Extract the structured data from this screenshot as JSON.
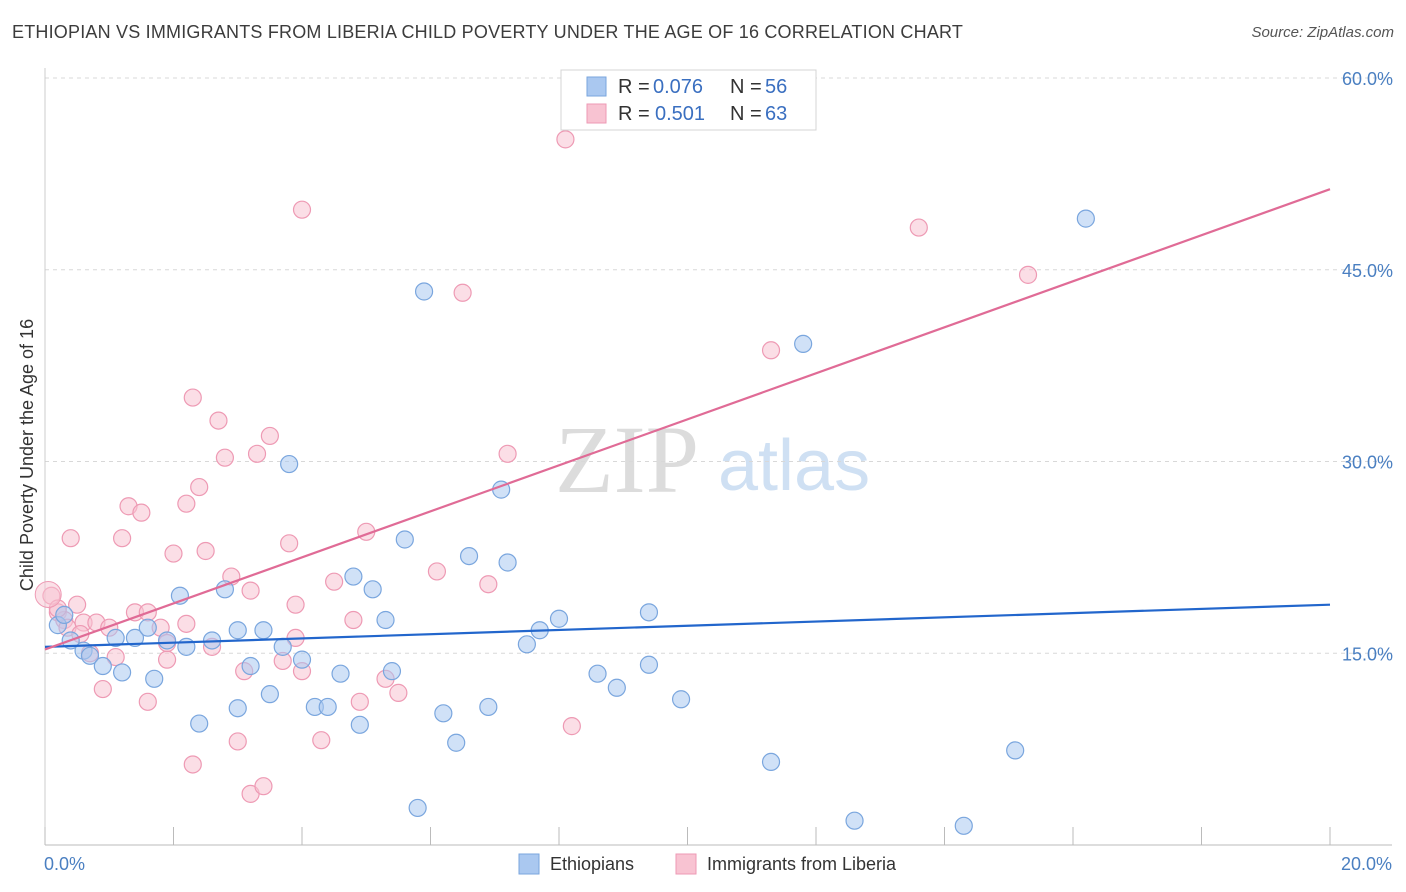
{
  "title": "ETHIOPIAN VS IMMIGRANTS FROM LIBERIA CHILD POVERTY UNDER THE AGE OF 16 CORRELATION CHART",
  "source": "Source: ZipAtlas.com",
  "watermark": {
    "zip": "ZIP",
    "atlas": "atlas"
  },
  "colors": {
    "blue_fill": "#aac8f0",
    "blue_stroke": "#7aa6de",
    "blue_line": "#2266cc",
    "pink_fill": "#f8c3d2",
    "pink_stroke": "#ee9ab4",
    "pink_line": "#e06b96",
    "tick_text": "#4a7fc1",
    "grid": "#d8d8d8"
  },
  "legend": {
    "rows": [
      {
        "r_label": "R =",
        "r_value": "0.076",
        "n_label": "N =",
        "n_value": "56"
      },
      {
        "r_label": "R =",
        "r_value": "0.501",
        "n_label": "N =",
        "n_value": "63"
      }
    ]
  },
  "chart_data": {
    "type": "scatter",
    "title": "ETHIOPIAN VS IMMIGRANTS FROM LIBERIA CHILD POVERTY UNDER THE AGE OF 16 CORRELATION CHART",
    "xlabel": "",
    "ylabel": "Child Poverty Under the Age of 16",
    "xlim": [
      0,
      20
    ],
    "ylim": [
      0,
      60
    ],
    "x_tick_labels": [
      "0.0%",
      "20.0%"
    ],
    "y_ticks": [
      15,
      30,
      45,
      60
    ],
    "y_tick_labels": [
      "15.0%",
      "30.0%",
      "45.0%",
      "60.0%"
    ],
    "grid": true,
    "legend_position": "top-center",
    "series": [
      {
        "name": "Ethiopians",
        "color": "#aac8f0",
        "trend": {
          "x": [
            0,
            20
          ],
          "y": [
            15.5,
            18.8
          ]
        },
        "points": [
          [
            0.2,
            17.2
          ],
          [
            0.3,
            18.0
          ],
          [
            0.4,
            16.0
          ],
          [
            0.6,
            15.2
          ],
          [
            0.7,
            14.8
          ],
          [
            0.9,
            14.0
          ],
          [
            1.1,
            16.2
          ],
          [
            1.2,
            13.5
          ],
          [
            1.4,
            16.2
          ],
          [
            1.6,
            17.0
          ],
          [
            1.7,
            13.0
          ],
          [
            1.9,
            16.0
          ],
          [
            2.1,
            19.5
          ],
          [
            2.2,
            15.5
          ],
          [
            2.4,
            9.5
          ],
          [
            2.6,
            16.0
          ],
          [
            2.8,
            20.0
          ],
          [
            3.0,
            10.7
          ],
          [
            3.0,
            16.8
          ],
          [
            3.2,
            14.0
          ],
          [
            3.4,
            16.8
          ],
          [
            3.5,
            11.8
          ],
          [
            3.7,
            15.5
          ],
          [
            3.8,
            29.8
          ],
          [
            4.0,
            14.5
          ],
          [
            4.2,
            10.8
          ],
          [
            4.4,
            10.8
          ],
          [
            4.6,
            13.4
          ],
          [
            4.8,
            21.0
          ],
          [
            4.9,
            9.4
          ],
          [
            5.1,
            20.0
          ],
          [
            5.3,
            17.6
          ],
          [
            5.4,
            13.6
          ],
          [
            5.6,
            23.9
          ],
          [
            5.8,
            2.9
          ],
          [
            5.9,
            43.3
          ],
          [
            6.2,
            10.3
          ],
          [
            6.4,
            8.0
          ],
          [
            6.6,
            22.6
          ],
          [
            6.9,
            10.8
          ],
          [
            7.1,
            27.8
          ],
          [
            7.2,
            22.1
          ],
          [
            7.5,
            15.7
          ],
          [
            7.7,
            16.8
          ],
          [
            8.0,
            17.7
          ],
          [
            8.6,
            13.4
          ],
          [
            8.9,
            12.3
          ],
          [
            9.4,
            18.2
          ],
          [
            9.4,
            14.1
          ],
          [
            9.9,
            11.4
          ],
          [
            11.3,
            6.5
          ],
          [
            11.8,
            39.2
          ],
          [
            12.6,
            1.9
          ],
          [
            14.3,
            1.5
          ],
          [
            15.1,
            7.4
          ],
          [
            16.2,
            49.0
          ]
        ]
      },
      {
        "name": "Immigrants from Liberia",
        "color": "#f8c3d2",
        "trend": {
          "x": [
            0,
            20
          ],
          "y": [
            15.3,
            51.3
          ]
        },
        "points": [
          [
            0.1,
            19.5
          ],
          [
            0.2,
            18.2
          ],
          [
            0.3,
            17.6
          ],
          [
            0.4,
            24.0
          ],
          [
            0.5,
            18.8
          ],
          [
            0.6,
            17.4
          ],
          [
            0.7,
            15.0
          ],
          [
            0.8,
            17.4
          ],
          [
            0.9,
            12.2
          ],
          [
            1.0,
            17.0
          ],
          [
            1.1,
            14.7
          ],
          [
            1.2,
            24.0
          ],
          [
            1.3,
            26.5
          ],
          [
            1.4,
            18.2
          ],
          [
            1.5,
            26.0
          ],
          [
            1.6,
            18.2
          ],
          [
            1.6,
            11.2
          ],
          [
            1.8,
            17.0
          ],
          [
            1.9,
            14.5
          ],
          [
            1.9,
            15.8
          ],
          [
            2.0,
            22.8
          ],
          [
            2.2,
            17.3
          ],
          [
            2.2,
            26.7
          ],
          [
            2.3,
            6.3
          ],
          [
            2.3,
            35.0
          ],
          [
            2.4,
            28.0
          ],
          [
            2.5,
            23.0
          ],
          [
            2.6,
            15.5
          ],
          [
            2.7,
            33.2
          ],
          [
            2.8,
            30.3
          ],
          [
            2.9,
            21.0
          ],
          [
            3.0,
            8.1
          ],
          [
            3.1,
            13.6
          ],
          [
            3.2,
            4.0
          ],
          [
            3.2,
            19.9
          ],
          [
            3.3,
            30.6
          ],
          [
            3.4,
            4.6
          ],
          [
            3.5,
            32.0
          ],
          [
            3.7,
            14.4
          ],
          [
            3.8,
            23.6
          ],
          [
            3.9,
            18.8
          ],
          [
            3.9,
            16.2
          ],
          [
            4.0,
            13.6
          ],
          [
            4.0,
            49.7
          ],
          [
            4.3,
            8.2
          ],
          [
            4.5,
            20.6
          ],
          [
            4.8,
            17.6
          ],
          [
            4.9,
            11.2
          ],
          [
            5.0,
            24.5
          ],
          [
            5.3,
            13.0
          ],
          [
            5.5,
            11.9
          ],
          [
            6.1,
            21.4
          ],
          [
            6.5,
            43.2
          ],
          [
            6.9,
            20.4
          ],
          [
            7.2,
            30.6
          ],
          [
            8.2,
            9.3
          ],
          [
            8.1,
            55.2
          ],
          [
            11.3,
            38.7
          ],
          [
            13.6,
            48.3
          ],
          [
            15.3,
            44.6
          ],
          [
            0.2,
            18.5
          ],
          [
            0.35,
            17.0
          ],
          [
            0.55,
            16.5
          ]
        ]
      }
    ]
  },
  "bottom_legend": {
    "items": [
      "Ethiopians",
      "Immigrants from Liberia"
    ]
  }
}
